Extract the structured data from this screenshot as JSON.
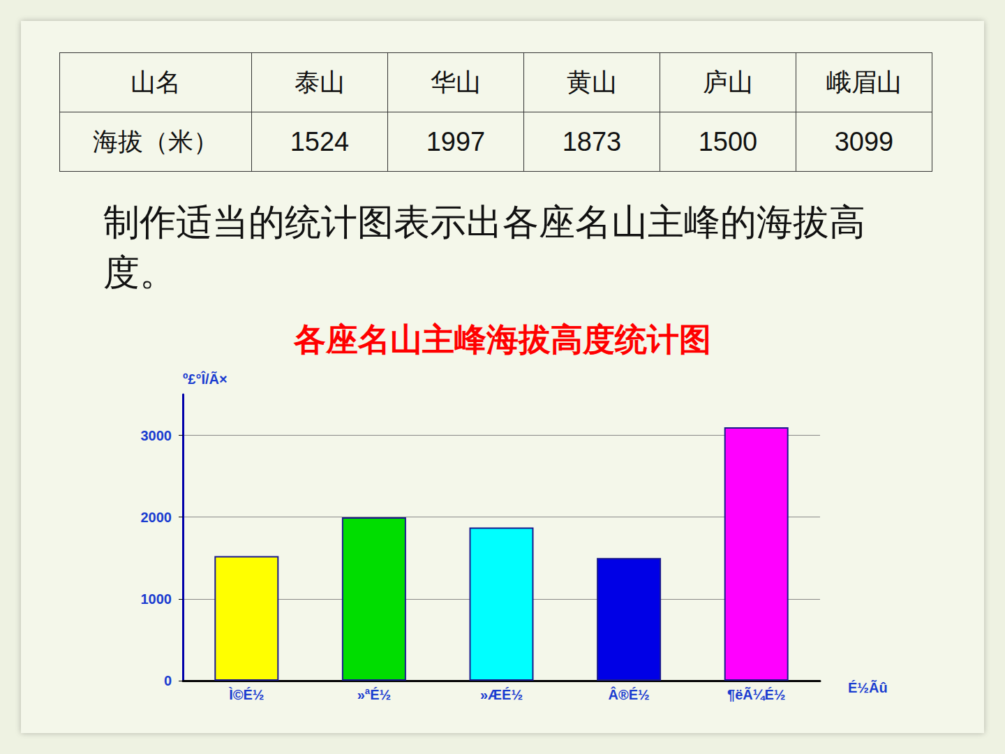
{
  "table": {
    "header": [
      "山名",
      "泰山",
      "华山",
      "黄山",
      "庐山",
      "峨眉山"
    ],
    "rows": [
      [
        "海拔（米）",
        "1524",
        "1997",
        "1873",
        "1500",
        "3099"
      ]
    ]
  },
  "instruction": "制作适当的统计图表示出各座名山主峰的海拔高度。",
  "chart_data": {
    "type": "bar",
    "title": "各座名山主峰海拔高度统计图",
    "y_label": "º£°Î/Ã×",
    "x_label": "É½Ãû",
    "categories": [
      "Ì©É½",
      "»ªÉ½",
      "»ÆÉ½",
      "Â®É½",
      "¶ëÃ¼É½"
    ],
    "values": [
      1524,
      1997,
      1873,
      1500,
      3099
    ],
    "colors": [
      "#ffff00",
      "#00dd00",
      "#00ffff",
      "#0000e6",
      "#ff00ff"
    ],
    "ylim": [
      0,
      3500
    ],
    "yticks": [
      0,
      1000,
      2000,
      3000
    ],
    "grid": true
  }
}
